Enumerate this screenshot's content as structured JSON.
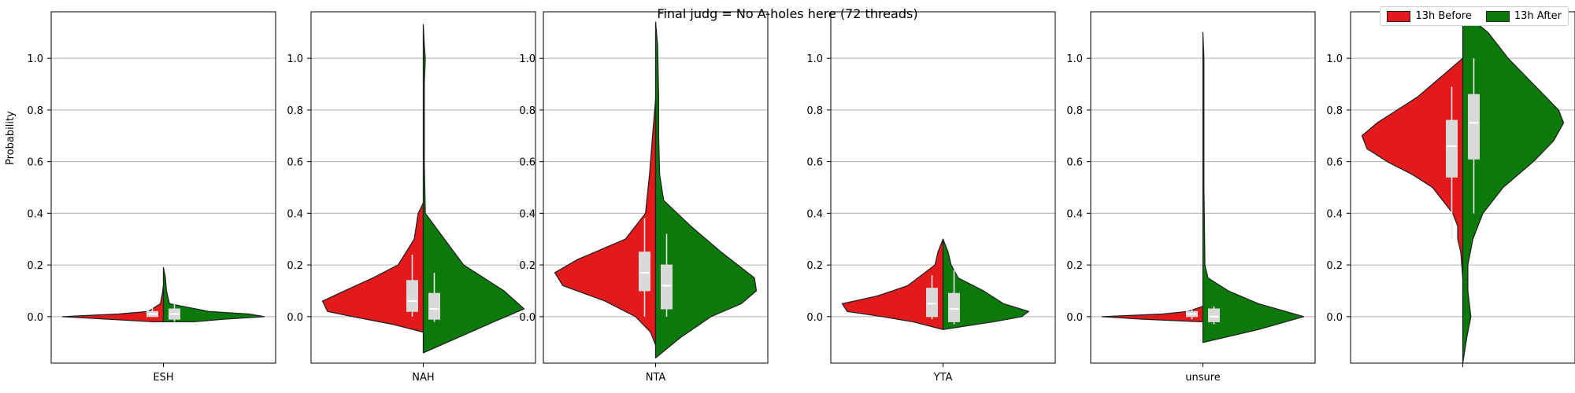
{
  "chart_data": {
    "type": "violin",
    "title": "Final judg = No A-holes here (72 threads)",
    "ylabel": "Probability",
    "xlabel": "",
    "ylim": [
      -0.18,
      1.18
    ],
    "yticks": [
      "0.0",
      "0.2",
      "0.4",
      "0.6",
      "0.8",
      "1.0"
    ],
    "ytick_values": [
      0.0,
      0.2,
      0.4,
      0.6,
      0.8,
      1.0
    ],
    "grid": "horizontal",
    "legend_placement": "top-right",
    "series": [
      {
        "name": "13h Before",
        "color": "#e31a1c"
      },
      {
        "name": "13h After",
        "color": "#0b7a0b"
      }
    ],
    "panels": [
      {
        "category": "ESH",
        "before": {
          "quartiles": [
            0.0,
            0.01,
            0.02
          ],
          "whisker": [
            0.0,
            0.04
          ],
          "median": 0.01,
          "profile": [
            [
              0.12,
              0.0
            ],
            [
              0.09,
              0.01
            ],
            [
              0.05,
              0.03
            ],
            [
              0.02,
              0.15
            ],
            [
              0.01,
              0.45
            ],
            [
              0.0,
              1.0
            ],
            [
              -0.01,
              0.55
            ],
            [
              -0.02,
              0.1
            ]
          ]
        },
        "after": {
          "quartiles": [
            -0.01,
            0.01,
            0.03
          ],
          "whisker": [
            -0.02,
            0.05
          ],
          "median": 0.01,
          "profile": [
            [
              0.19,
              0.0
            ],
            [
              0.15,
              0.02
            ],
            [
              0.1,
              0.03
            ],
            [
              0.05,
              0.06
            ],
            [
              0.02,
              0.45
            ],
            [
              0.01,
              0.85
            ],
            [
              0.0,
              1.0
            ],
            [
              -0.01,
              0.6
            ],
            [
              -0.02,
              0.3
            ]
          ]
        }
      },
      {
        "category": "NAH",
        "before": {
          "quartiles": [
            0.02,
            0.06,
            0.14
          ],
          "whisker": [
            0.0,
            0.24
          ],
          "median": 0.06,
          "profile": [
            [
              0.44,
              0.0
            ],
            [
              0.4,
              0.05
            ],
            [
              0.35,
              0.07
            ],
            [
              0.3,
              0.09
            ],
            [
              0.2,
              0.25
            ],
            [
              0.15,
              0.5
            ],
            [
              0.1,
              0.78
            ],
            [
              0.06,
              1.0
            ],
            [
              0.02,
              0.95
            ],
            [
              0.0,
              0.7
            ],
            [
              -0.03,
              0.3
            ],
            [
              -0.06,
              0.0
            ]
          ]
        },
        "after": {
          "quartiles": [
            -0.01,
            0.03,
            0.09
          ],
          "whisker": [
            -0.02,
            0.17
          ],
          "median": 0.03,
          "profile": [
            [
              1.13,
              0.0
            ],
            [
              1.05,
              0.01
            ],
            [
              1.0,
              0.02
            ],
            [
              0.9,
              0.01
            ],
            [
              0.6,
              0.01
            ],
            [
              0.4,
              0.02
            ],
            [
              0.2,
              0.4
            ],
            [
              0.1,
              0.8
            ],
            [
              0.03,
              1.0
            ],
            [
              -0.02,
              0.7
            ],
            [
              -0.08,
              0.35
            ],
            [
              -0.14,
              0.0
            ]
          ]
        }
      },
      {
        "category": "NTA",
        "before": {
          "quartiles": [
            0.1,
            0.17,
            0.25
          ],
          "whisker": [
            0.0,
            0.38
          ],
          "median": 0.17,
          "profile": [
            [
              0.84,
              0.0
            ],
            [
              0.7,
              0.03
            ],
            [
              0.55,
              0.06
            ],
            [
              0.4,
              0.1
            ],
            [
              0.3,
              0.3
            ],
            [
              0.22,
              0.78
            ],
            [
              0.17,
              1.0
            ],
            [
              0.12,
              0.92
            ],
            [
              0.06,
              0.5
            ],
            [
              0.0,
              0.2
            ],
            [
              -0.06,
              0.05
            ],
            [
              -0.11,
              0.0
            ]
          ]
        },
        "after": {
          "quartiles": [
            0.03,
            0.12,
            0.2
          ],
          "whisker": [
            0.0,
            0.32
          ],
          "median": 0.12,
          "profile": [
            [
              1.14,
              0.0
            ],
            [
              1.05,
              0.02
            ],
            [
              0.85,
              0.03
            ],
            [
              0.7,
              0.03
            ],
            [
              0.55,
              0.04
            ],
            [
              0.45,
              0.08
            ],
            [
              0.35,
              0.35
            ],
            [
              0.25,
              0.65
            ],
            [
              0.15,
              0.98
            ],
            [
              0.1,
              1.0
            ],
            [
              0.05,
              0.85
            ],
            [
              0.0,
              0.55
            ],
            [
              -0.08,
              0.25
            ],
            [
              -0.16,
              0.0
            ]
          ]
        }
      },
      {
        "category": "YTA",
        "before": {
          "quartiles": [
            0.0,
            0.05,
            0.11
          ],
          "whisker": [
            -0.01,
            0.16
          ],
          "median": 0.05,
          "profile": [
            [
              0.3,
              0.0
            ],
            [
              0.25,
              0.05
            ],
            [
              0.2,
              0.08
            ],
            [
              0.12,
              0.35
            ],
            [
              0.08,
              0.65
            ],
            [
              0.05,
              1.0
            ],
            [
              0.02,
              0.95
            ],
            [
              0.0,
              0.6
            ],
            [
              -0.02,
              0.3
            ],
            [
              -0.05,
              0.0
            ]
          ]
        },
        "after": {
          "quartiles": [
            -0.02,
            0.03,
            0.09
          ],
          "whisker": [
            -0.03,
            0.18
          ],
          "median": 0.03,
          "profile": [
            [
              0.3,
              0.0
            ],
            [
              0.25,
              0.05
            ],
            [
              0.2,
              0.08
            ],
            [
              0.15,
              0.15
            ],
            [
              0.1,
              0.4
            ],
            [
              0.05,
              0.6
            ],
            [
              0.02,
              0.85
            ],
            [
              0.0,
              0.78
            ],
            [
              -0.02,
              0.5
            ],
            [
              -0.05,
              0.0
            ]
          ]
        }
      },
      {
        "category": "unsure",
        "before": {
          "quartiles": [
            0.0,
            0.01,
            0.02
          ],
          "whisker": [
            -0.01,
            0.04
          ],
          "median": 0.01,
          "profile": [
            [
              0.04,
              0.0
            ],
            [
              0.02,
              0.15
            ],
            [
              0.01,
              0.4
            ],
            [
              0.0,
              1.0
            ],
            [
              -0.01,
              0.6
            ],
            [
              -0.02,
              0.0
            ]
          ]
        },
        "after": {
          "quartiles": [
            -0.02,
            0.0,
            0.03
          ],
          "whisker": [
            -0.03,
            0.04
          ],
          "median": 0.0,
          "profile": [
            [
              1.1,
              0.0
            ],
            [
              1.0,
              0.01
            ],
            [
              0.9,
              0.01
            ],
            [
              0.5,
              0.01
            ],
            [
              0.2,
              0.02
            ],
            [
              0.15,
              0.05
            ],
            [
              0.1,
              0.25
            ],
            [
              0.05,
              0.55
            ],
            [
              0.0,
              1.0
            ],
            [
              -0.05,
              0.55
            ],
            [
              -0.1,
              0.0
            ]
          ]
        }
      },
      {
        "category": "",
        "before": {
          "quartiles": [
            0.54,
            0.66,
            0.76
          ],
          "whisker": [
            0.3,
            0.89
          ],
          "median": 0.66,
          "profile": [
            [
              1.0,
              0.0
            ],
            [
              0.95,
              0.15
            ],
            [
              0.85,
              0.45
            ],
            [
              0.75,
              0.85
            ],
            [
              0.7,
              1.0
            ],
            [
              0.65,
              0.95
            ],
            [
              0.6,
              0.75
            ],
            [
              0.55,
              0.5
            ],
            [
              0.5,
              0.3
            ],
            [
              0.45,
              0.2
            ],
            [
              0.4,
              0.1
            ],
            [
              0.35,
              0.05
            ],
            [
              0.3,
              0.05
            ],
            [
              0.25,
              0.02
            ],
            [
              0.15,
              0.0
            ]
          ]
        },
        "after": {
          "quartiles": [
            0.61,
            0.75,
            0.86
          ],
          "whisker": [
            0.4,
            1.0
          ],
          "median": 0.75,
          "profile": [
            [
              1.18,
              0.0
            ],
            [
              1.1,
              0.25
            ],
            [
              1.0,
              0.45
            ],
            [
              0.9,
              0.7
            ],
            [
              0.8,
              0.95
            ],
            [
              0.75,
              1.0
            ],
            [
              0.68,
              0.9
            ],
            [
              0.6,
              0.7
            ],
            [
              0.5,
              0.4
            ],
            [
              0.4,
              0.2
            ],
            [
              0.3,
              0.1
            ],
            [
              0.2,
              0.05
            ],
            [
              0.1,
              0.05
            ],
            [
              0.0,
              0.08
            ],
            [
              -0.08,
              0.04
            ],
            [
              -0.18,
              0.0
            ]
          ]
        }
      }
    ]
  }
}
